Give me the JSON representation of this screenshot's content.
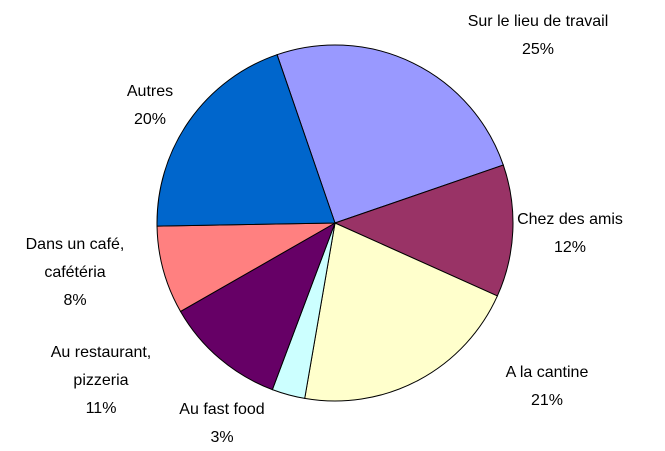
{
  "chart_data": {
    "type": "pie",
    "categories": [
      "Sur le lieu de travail",
      "Chez des amis",
      "A la cantine",
      "Au fast food",
      "Au restaurant, pizzeria",
      "Dans un café, cafétéria",
      "Autres"
    ],
    "values": [
      25,
      12,
      21,
      3,
      11,
      8,
      20
    ],
    "value_labels": [
      "25%",
      "12%",
      "21%",
      "3%",
      "11%",
      "8%",
      "20%"
    ],
    "colors": [
      "#9999ff",
      "#993366",
      "#ffffcc",
      "#ccffff",
      "#660066",
      "#ff8080",
      "#0066cc"
    ]
  }
}
